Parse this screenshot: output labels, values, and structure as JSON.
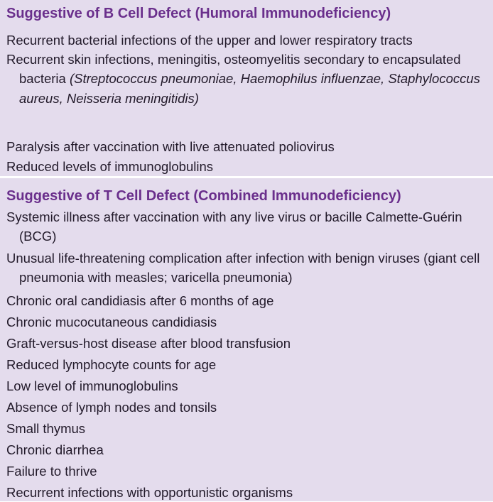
{
  "sections": {
    "b_cell": {
      "heading": "Suggestive of B Cell Defect (Humoral Immunodeficiency)",
      "items": [
        "Recurrent bacterial infections of the upper and lower respiratory tracts",
        "Recurrent skin infections, meningitis, osteomyelitis secondary to encapsulated bacteria",
        "Paralysis after vaccination with live attenuated poliovirus",
        "Reduced levels of immunoglobulins"
      ],
      "item2_italic": "(Streptococcus pneumoniae, Haemophilus influenzae, Staphylococcus aureus, Neisseria meningitidis)"
    },
    "t_cell": {
      "heading": "Suggestive of T Cell Defect (Combined Immunodeficiency)",
      "items": [
        "Systemic illness after vaccination with any live virus or bacille Calmette-Guérin (BCG)",
        "Unusual life-threatening complication after infection with benign viruses (giant cell pneumonia with measles; varicella pneumonia)",
        "Chronic oral candidiasis after 6 months of age",
        "Chronic mucocutaneous candidiasis",
        "Graft-versus-host disease after blood transfusion",
        "Reduced lymphocyte counts for age",
        "Low level of immunoglobulins",
        "Absence of lymph nodes and tonsils",
        "Small thymus",
        "Chronic diarrhea",
        "Failure to thrive",
        "Recurrent infections with opportunistic organisms"
      ]
    }
  },
  "colors": {
    "background": "#e4dced",
    "heading": "#6a2f8c",
    "divider": "#ffffff",
    "text": "#221a2a"
  }
}
